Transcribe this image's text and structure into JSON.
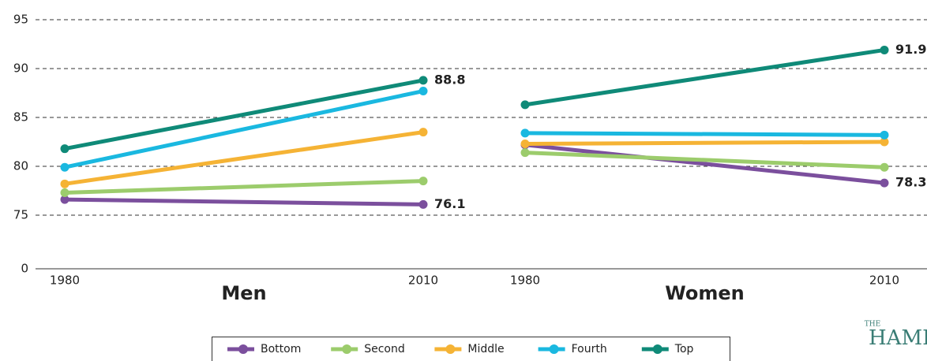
{
  "chart_data": {
    "type": "line",
    "axis_break": true,
    "ylim": [
      0,
      95
    ],
    "yticks": [
      0,
      75,
      80,
      85,
      90,
      95
    ],
    "grid": true,
    "panels": [
      {
        "title": "Men",
        "x": [
          1980,
          2010
        ],
        "series": [
          {
            "name": "Bottom",
            "color": "#7b4f9d",
            "values": [
              76.6,
              76.1
            ],
            "value_labels": [
              null,
              "76.1"
            ]
          },
          {
            "name": "Second",
            "color": "#9ccc6c",
            "values": [
              77.3,
              78.5
            ],
            "value_labels": [
              null,
              null
            ]
          },
          {
            "name": "Middle",
            "color": "#f5b335",
            "values": [
              78.2,
              83.5
            ],
            "value_labels": [
              null,
              null
            ]
          },
          {
            "name": "Fourth",
            "color": "#1ab8e0",
            "values": [
              79.9,
              87.7
            ],
            "value_labels": [
              null,
              null
            ]
          },
          {
            "name": "Top",
            "color": "#0f8a78",
            "values": [
              81.8,
              88.8
            ],
            "value_labels": [
              null,
              "88.8"
            ]
          }
        ]
      },
      {
        "title": "Women",
        "x": [
          1980,
          2010
        ],
        "series": [
          {
            "name": "Bottom",
            "color": "#7b4f9d",
            "values": [
              82.2,
              78.3
            ],
            "value_labels": [
              null,
              "78.3"
            ]
          },
          {
            "name": "Second",
            "color": "#9ccc6c",
            "values": [
              81.4,
              79.9
            ],
            "value_labels": [
              null,
              null
            ]
          },
          {
            "name": "Middle",
            "color": "#f5b335",
            "values": [
              82.3,
              82.5
            ],
            "value_labels": [
              null,
              null
            ]
          },
          {
            "name": "Fourth",
            "color": "#1ab8e0",
            "values": [
              83.4,
              83.2
            ],
            "value_labels": [
              null,
              null
            ]
          },
          {
            "name": "Top",
            "color": "#0f8a78",
            "values": [
              86.3,
              91.9
            ],
            "value_labels": [
              null,
              "91.9"
            ]
          }
        ]
      }
    ],
    "legend_position": "bottom",
    "logo": {
      "top": "THE",
      "main": "HAMI"
    }
  }
}
